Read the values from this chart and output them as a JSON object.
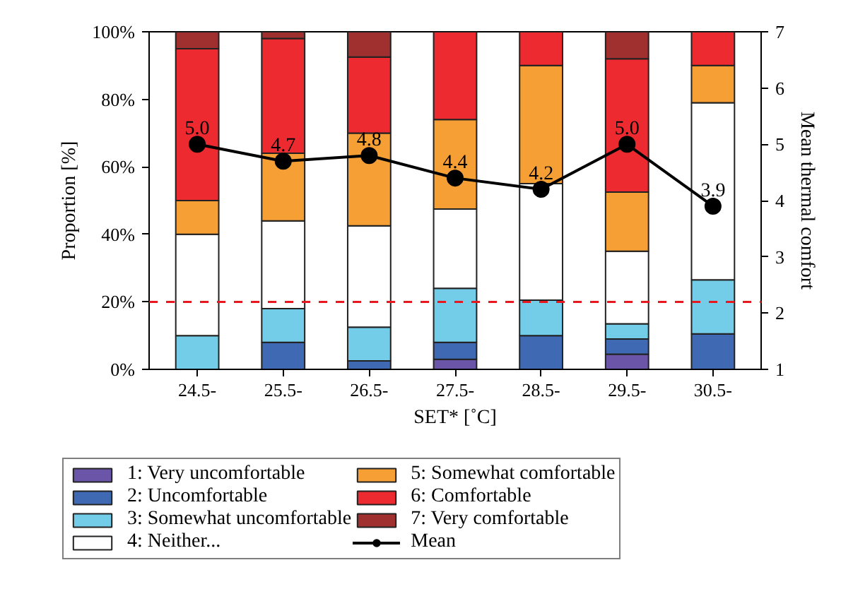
{
  "chart_data": {
    "type": "bar",
    "stacked": true,
    "xlabel": "SET* [˚C]",
    "ylabel": "Proportion [%]",
    "y2label": "Mean thermal comfort",
    "categories": [
      "24.5-",
      "25.5-",
      "26.5-",
      "27.5-",
      "28.5-",
      "29.5-",
      "30.5-"
    ],
    "ylim": [
      0,
      100
    ],
    "yticks": [
      {
        "value": 0,
        "label": "0%"
      },
      {
        "value": 20,
        "label": "20%"
      },
      {
        "value": 40,
        "label": "40%"
      },
      {
        "value": 60,
        "label": "60%"
      },
      {
        "value": 80,
        "label": "80%"
      },
      {
        "value": 100,
        "label": "100%"
      }
    ],
    "y2lim": [
      1,
      7
    ],
    "y2ticks": [
      1,
      2,
      3,
      4,
      5,
      6,
      7
    ],
    "series": [
      {
        "name": "1: Very uncomfortable",
        "color": "#6a55a8",
        "values": [
          0,
          0,
          0,
          3,
          0,
          4.5,
          0
        ]
      },
      {
        "name": "2: Uncomfortable",
        "color": "#3f6ab3",
        "values": [
          0,
          8,
          2.5,
          5,
          10,
          4.5,
          10.5
        ]
      },
      {
        "name": "3: Somewhat uncomfortable",
        "color": "#73cde8",
        "values": [
          10,
          10,
          10,
          16,
          10.5,
          4.5,
          16
        ]
      },
      {
        "name": "4: Neither...",
        "color": "#ffffff",
        "values": [
          30,
          26,
          30,
          23.5,
          34.5,
          21.5,
          52.5
        ]
      },
      {
        "name": "5: Somewhat comfortable",
        "color": "#f59f35",
        "values": [
          10,
          20,
          27.5,
          26.5,
          35,
          17.5,
          11
        ]
      },
      {
        "name": "6: Comfortable",
        "color": "#ec2a2f",
        "values": [
          45,
          34,
          22.5,
          26,
          10,
          39.5,
          10
        ]
      },
      {
        "name": "7: Very comfortable",
        "color": "#a02f30",
        "values": [
          5,
          2,
          7.5,
          0,
          0,
          8,
          0
        ]
      },
      {
        "name": "Mean",
        "type": "line",
        "axis": "y2",
        "color": "#000000",
        "marker": "circle",
        "values": [
          5.0,
          4.7,
          4.8,
          4.4,
          4.2,
          5.0,
          3.9
        ],
        "value_labels": [
          "5.0",
          "4.7",
          "4.8",
          "4.4",
          "4.2",
          "5.0",
          "3.9"
        ]
      }
    ],
    "ref_lines": [
      {
        "axis": "y",
        "value": 20,
        "color": "#e8191e",
        "line_style": "dashed"
      }
    ],
    "grid": false,
    "legend": "bottom"
  }
}
